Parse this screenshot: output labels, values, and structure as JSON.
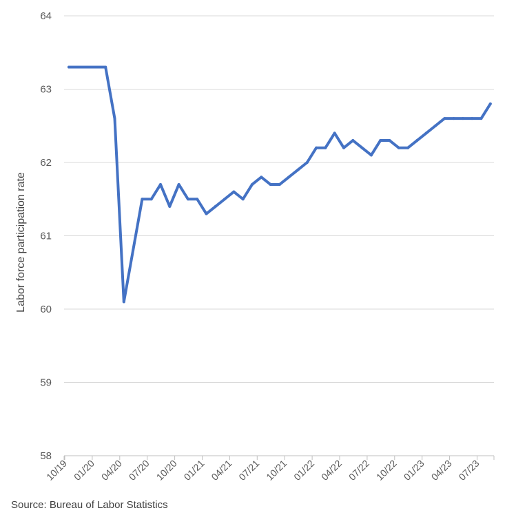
{
  "chart_data": {
    "type": "line",
    "title": "",
    "xlabel": "",
    "ylabel": "Labor force participation rate",
    "ylim": [
      58,
      64
    ],
    "yticks": [
      "58",
      "59",
      "60",
      "61",
      "62",
      "63",
      "64"
    ],
    "grid": true,
    "legend": "none",
    "x_tick_labels": [
      "10/19",
      "01/20",
      "04/20",
      "07/20",
      "10/20",
      "01/21",
      "04/21",
      "07/21",
      "10/21",
      "01/22",
      "04/22",
      "07/22",
      "10/22",
      "01/23",
      "04/23",
      "07/23"
    ],
    "series": [
      {
        "name": "Labor force participation rate",
        "color": "#4472C4",
        "x": [
          "10/19",
          "11/19",
          "12/19",
          "01/20",
          "02/20",
          "03/20",
          "04/20",
          "05/20",
          "06/20",
          "07/20",
          "08/20",
          "09/20",
          "10/20",
          "11/20",
          "12/20",
          "01/21",
          "02/21",
          "03/21",
          "04/21",
          "05/21",
          "06/21",
          "07/21",
          "08/21",
          "09/21",
          "10/21",
          "11/21",
          "12/21",
          "01/22",
          "02/22",
          "03/22",
          "04/22",
          "05/22",
          "06/22",
          "07/22",
          "08/22",
          "09/22",
          "10/22",
          "11/22",
          "12/22",
          "01/23",
          "02/23",
          "03/23",
          "04/23",
          "05/23",
          "06/23",
          "07/23",
          "08/23"
        ],
        "values": [
          63.3,
          63.3,
          63.3,
          63.3,
          63.3,
          62.6,
          60.1,
          60.8,
          61.5,
          61.5,
          61.7,
          61.4,
          61.7,
          61.5,
          61.5,
          61.3,
          61.4,
          61.5,
          61.6,
          61.5,
          61.7,
          61.8,
          61.7,
          61.7,
          61.8,
          61.9,
          62.0,
          62.2,
          62.2,
          62.4,
          62.2,
          62.3,
          62.2,
          62.1,
          62.3,
          62.3,
          62.2,
          62.2,
          62.3,
          62.4,
          62.5,
          62.6,
          62.6,
          62.6,
          62.6,
          62.6,
          62.8
        ]
      }
    ]
  },
  "footer": {
    "source": "Source: Bureau of Labor Statistics"
  }
}
